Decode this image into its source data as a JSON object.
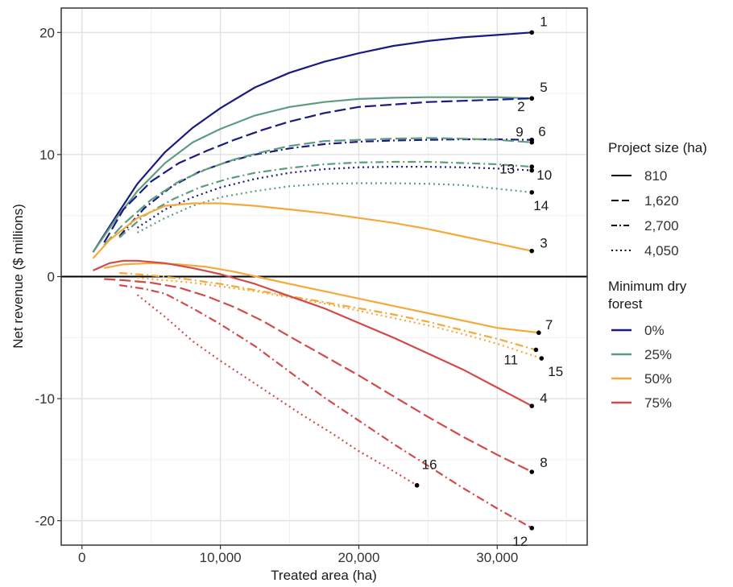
{
  "chart_data": {
    "type": "line",
    "xlabel": "Treated area (ha)",
    "ylabel": "Net revenue ($ millions)",
    "xlim": [
      -1500,
      36500
    ],
    "ylim": [
      -22,
      22
    ],
    "x_ticks": [
      0,
      10000,
      20000,
      30000
    ],
    "x_tick_labels": [
      "0",
      "10,000",
      "20,000",
      "30,000"
    ],
    "y_ticks": [
      -20,
      -10,
      0,
      10,
      20
    ],
    "y_tick_labels": [
      "-20",
      "-10",
      "0",
      "10",
      "20"
    ],
    "grid": true,
    "zero_line": true,
    "legend_position": "right",
    "legend": {
      "size_title": "Project size (ha)",
      "size_entries": [
        {
          "label": "810",
          "dash": "solid"
        },
        {
          "label": "1,620",
          "dash": "longdash"
        },
        {
          "label": "2,700",
          "dash": "dashdot"
        },
        {
          "label": "4,050",
          "dash": "dotted"
        }
      ],
      "forest_title_lines": [
        "Minimum dry",
        "forest"
      ],
      "forest_entries": [
        {
          "label": "0%",
          "color": "#1a1a80"
        },
        {
          "label": "25%",
          "color": "#5e9c7e"
        },
        {
          "label": "50%",
          "color": "#f5a83c"
        },
        {
          "label": "75%",
          "color": "#d24a4a"
        }
      ]
    },
    "series": [
      {
        "label": "1",
        "forest": "0%",
        "size": "810",
        "x": [
          800,
          2500,
          4000,
          6000,
          8000,
          10000,
          12500,
          15000,
          17500,
          20000,
          22500,
          25000,
          27500,
          30000,
          32500
        ],
        "y": [
          2.0,
          5.0,
          7.6,
          10.2,
          12.2,
          13.8,
          15.5,
          16.7,
          17.6,
          18.3,
          18.9,
          19.3,
          19.6,
          19.8,
          20.0
        ]
      },
      {
        "label": "5",
        "forest": "25%",
        "size": "810",
        "x": [
          800,
          2500,
          4000,
          6000,
          8000,
          10000,
          12500,
          15000,
          17500,
          20000,
          22500,
          25000,
          27500,
          30000,
          32500
        ],
        "y": [
          2.0,
          4.8,
          7.0,
          9.3,
          11.0,
          12.1,
          13.2,
          13.9,
          14.3,
          14.55,
          14.65,
          14.7,
          14.7,
          14.7,
          14.6
        ]
      },
      {
        "label": "2",
        "forest": "0%",
        "size": "1,620",
        "x": [
          1600,
          3000,
          5000,
          7000,
          9000,
          11000,
          13000,
          15000,
          17500,
          20000,
          22500,
          25000,
          27500,
          30000,
          32500
        ],
        "y": [
          2.8,
          5.5,
          7.8,
          9.3,
          10.3,
          11.2,
          12.0,
          12.7,
          13.4,
          13.9,
          14.1,
          14.3,
          14.4,
          14.5,
          14.6
        ]
      },
      {
        "label": "9",
        "forest": "0%",
        "size": "2,700",
        "x": [
          2700,
          4500,
          6500,
          8500,
          10500,
          12500,
          15000,
          17500,
          20000,
          22500,
          25000,
          27500,
          30000,
          32500
        ],
        "y": [
          3.3,
          5.6,
          7.4,
          8.6,
          9.4,
          10.0,
          10.5,
          10.85,
          11.05,
          11.15,
          11.2,
          11.25,
          11.25,
          11.2
        ]
      },
      {
        "label": "6",
        "forest": "25%",
        "size": "1,620",
        "x": [
          1600,
          3000,
          5000,
          7000,
          9000,
          11000,
          13000,
          15000,
          17500,
          20000,
          22500,
          25000,
          27500,
          30000,
          32500
        ],
        "y": [
          2.6,
          4.3,
          6.3,
          7.8,
          8.8,
          9.6,
          10.2,
          10.7,
          11.1,
          11.2,
          11.3,
          11.35,
          11.3,
          11.2,
          11.0
        ]
      },
      {
        "label": "10",
        "forest": "25%",
        "size": "2,700",
        "x": [
          2700,
          4500,
          6500,
          8500,
          10500,
          12500,
          15000,
          17500,
          20000,
          22500,
          25000,
          27500,
          30000,
          32500
        ],
        "y": [
          3.2,
          5.0,
          6.3,
          7.3,
          8.0,
          8.5,
          8.9,
          9.2,
          9.35,
          9.4,
          9.4,
          9.3,
          9.2,
          9.0
        ]
      },
      {
        "label": "13",
        "forest": "0%",
        "size": "4,050",
        "x": [
          4000,
          6000,
          8000,
          10000,
          12500,
          15000,
          17500,
          20000,
          22500,
          25000,
          27500,
          30000,
          32500
        ],
        "y": [
          4.0,
          5.5,
          6.5,
          7.3,
          8.0,
          8.5,
          8.8,
          8.95,
          9.0,
          9.0,
          8.95,
          8.85,
          8.7
        ]
      },
      {
        "label": "14",
        "forest": "25%",
        "size": "4,050",
        "x": [
          4000,
          6000,
          8000,
          10000,
          12500,
          15000,
          17500,
          20000,
          22500,
          25000,
          27500,
          30000,
          32500
        ],
        "y": [
          3.6,
          4.8,
          5.8,
          6.5,
          7.0,
          7.4,
          7.6,
          7.65,
          7.65,
          7.6,
          7.5,
          7.2,
          6.9
        ]
      },
      {
        "label": "3",
        "forest": "50%",
        "size": "810",
        "x": [
          800,
          2000,
          4000,
          6000,
          8000,
          10000,
          12500,
          15000,
          17500,
          20000,
          22500,
          25000,
          27500,
          30000,
          32500
        ],
        "y": [
          1.5,
          3.0,
          4.8,
          5.8,
          6.0,
          6.0,
          5.8,
          5.5,
          5.2,
          4.8,
          4.4,
          3.9,
          3.3,
          2.7,
          2.1
        ]
      },
      {
        "label": "7",
        "forest": "50%",
        "size": "810",
        "x": [
          1600,
          3000,
          5000,
          7000,
          9000,
          11000,
          13000,
          15000,
          17500,
          20000,
          22500,
          25000,
          27500,
          30000,
          33000
        ],
        "y": [
          0.7,
          1.0,
          1.1,
          1.0,
          0.8,
          0.4,
          -0.1,
          -0.6,
          -1.2,
          -1.8,
          -2.4,
          -3.0,
          -3.6,
          -4.2,
          -4.6
        ]
      },
      {
        "label": "11",
        "forest": "50%",
        "size": "2,700",
        "x": [
          2700,
          5000,
          7500,
          10000,
          12500,
          15000,
          17500,
          20000,
          22500,
          25000,
          27500,
          30000,
          32800
        ],
        "y": [
          0.3,
          0.1,
          -0.2,
          -0.6,
          -1.1,
          -1.6,
          -2.1,
          -2.6,
          -3.1,
          -3.7,
          -4.4,
          -5.1,
          -6.0
        ]
      },
      {
        "label": "15",
        "forest": "50%",
        "size": "4,050",
        "x": [
          4000,
          6000,
          8000,
          10000,
          12500,
          15000,
          17500,
          20000,
          22500,
          25000,
          27500,
          30000,
          33200
        ],
        "y": [
          -0.1,
          -0.3,
          -0.5,
          -0.8,
          -1.2,
          -1.7,
          -2.2,
          -2.8,
          -3.4,
          -4.0,
          -4.7,
          -5.5,
          -6.7
        ]
      },
      {
        "label": "4",
        "forest": "75%",
        "size": "810",
        "x": [
          800,
          2000,
          3000,
          4000,
          6000,
          8000,
          10000,
          12500,
          15000,
          17500,
          20000,
          22500,
          25000,
          27500,
          30000,
          32500
        ],
        "y": [
          0.5,
          1.1,
          1.3,
          1.3,
          1.1,
          0.7,
          0.2,
          -0.6,
          -1.6,
          -2.6,
          -3.8,
          -5.0,
          -6.3,
          -7.6,
          -9.1,
          -10.6
        ]
      },
      {
        "label": "8",
        "forest": "75%",
        "size": "1,620",
        "x": [
          1600,
          3000,
          5000,
          7000,
          9000,
          11000,
          13000,
          15000,
          17500,
          20000,
          22500,
          25000,
          27500,
          30000,
          32500
        ],
        "y": [
          -0.2,
          -0.3,
          -0.5,
          -0.9,
          -1.6,
          -2.5,
          -3.6,
          -4.9,
          -6.5,
          -8.1,
          -9.8,
          -11.5,
          -13.1,
          -14.6,
          -16.0
        ]
      },
      {
        "label": "12",
        "forest": "75%",
        "size": "2,700",
        "x": [
          2700,
          4500,
          6000,
          8000,
          10000,
          12500,
          15000,
          17500,
          20000,
          22500,
          25000,
          27500,
          30000,
          32500
        ],
        "y": [
          -0.7,
          -1.0,
          -1.4,
          -2.6,
          -3.9,
          -5.7,
          -7.8,
          -9.9,
          -11.8,
          -13.7,
          -15.5,
          -17.3,
          -19.0,
          -20.6
        ]
      },
      {
        "label": "16",
        "forest": "75%",
        "size": "4,050",
        "x": [
          4000,
          6000,
          8000,
          10000,
          12000,
          14000,
          16000,
          18000,
          20000,
          22000,
          24200
        ],
        "y": [
          -1.5,
          -3.3,
          -5.3,
          -6.9,
          -8.4,
          -9.9,
          -11.4,
          -12.8,
          -14.3,
          -15.6,
          -17.1
        ]
      }
    ]
  }
}
